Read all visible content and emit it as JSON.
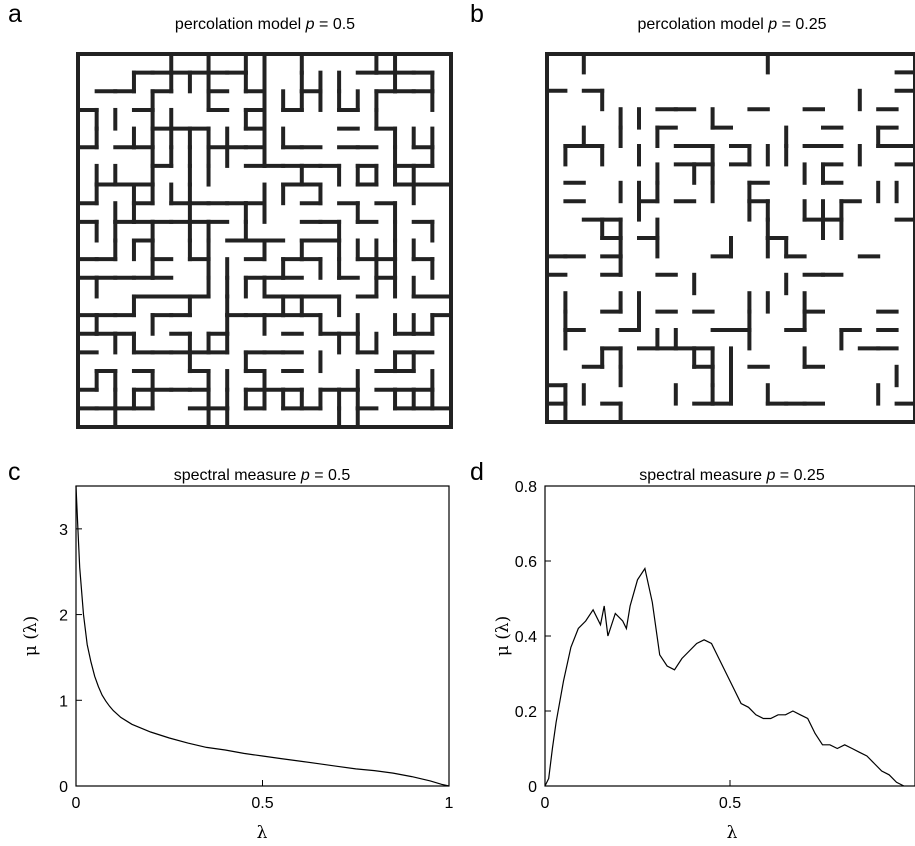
{
  "panels": {
    "a": {
      "letter": "a",
      "title_main": "percolation model ",
      "title_var": "p",
      "title_eq": " = 0.5",
      "lattice": {
        "grid_size": 20,
        "bond_probability": 0.5,
        "seed": 12345
      }
    },
    "b": {
      "letter": "b",
      "title_main": "percolation model ",
      "title_var": "p",
      "title_eq": " = 0.25",
      "lattice": {
        "grid_size": 20,
        "bond_probability": 0.25,
        "seed": 777
      }
    },
    "c": {
      "letter": "c",
      "title_main": "spectral measure ",
      "title_var": "p",
      "title_eq": " = 0.5",
      "xlabel": "λ",
      "ylabel": "μ (λ)",
      "xticks": [
        "0",
        "0.5",
        "1"
      ],
      "yticks": [
        "0",
        "1",
        "2",
        "3"
      ]
    },
    "d": {
      "letter": "d",
      "title_main": "spectral measure ",
      "title_var": "p",
      "title_eq": " = 0.25",
      "xlabel": "λ",
      "ylabel": "μ (λ)",
      "xticks": [
        "0",
        "0.5"
      ],
      "yticks": [
        "0",
        "0.2",
        "0.4",
        "0.6",
        "0.8"
      ]
    }
  },
  "chart_data": [
    {
      "type": "line",
      "panel": "c",
      "title": "spectral measure p = 0.5",
      "xlabel": "λ",
      "ylabel": "μ (λ)",
      "xlim": [
        0,
        1
      ],
      "ylim": [
        0,
        3.5
      ],
      "grid": false,
      "x": [
        0.0,
        0.005,
        0.01,
        0.02,
        0.03,
        0.04,
        0.05,
        0.06,
        0.07,
        0.08,
        0.09,
        0.1,
        0.12,
        0.15,
        0.2,
        0.25,
        0.3,
        0.35,
        0.4,
        0.45,
        0.5,
        0.55,
        0.6,
        0.65,
        0.7,
        0.75,
        0.8,
        0.85,
        0.9,
        0.95,
        0.98,
        1.0
      ],
      "y": [
        3.5,
        3.0,
        2.55,
        2.0,
        1.65,
        1.45,
        1.28,
        1.16,
        1.06,
        0.99,
        0.93,
        0.88,
        0.8,
        0.72,
        0.63,
        0.56,
        0.5,
        0.45,
        0.42,
        0.38,
        0.35,
        0.32,
        0.29,
        0.26,
        0.23,
        0.2,
        0.18,
        0.15,
        0.11,
        0.06,
        0.02,
        0.0
      ]
    },
    {
      "type": "line",
      "panel": "d",
      "title": "spectral measure p = 0.25",
      "xlabel": "λ",
      "ylabel": "μ (λ)",
      "xlim": [
        0,
        1
      ],
      "ylim": [
        0,
        0.8
      ],
      "grid": false,
      "x": [
        0.0,
        0.01,
        0.02,
        0.03,
        0.05,
        0.07,
        0.09,
        0.11,
        0.13,
        0.15,
        0.16,
        0.17,
        0.19,
        0.21,
        0.22,
        0.23,
        0.25,
        0.27,
        0.29,
        0.31,
        0.33,
        0.35,
        0.37,
        0.39,
        0.41,
        0.43,
        0.45,
        0.47,
        0.49,
        0.51,
        0.53,
        0.55,
        0.57,
        0.59,
        0.61,
        0.63,
        0.65,
        0.67,
        0.69,
        0.71,
        0.73,
        0.75,
        0.77,
        0.79,
        0.81,
        0.83,
        0.85,
        0.87,
        0.89,
        0.91,
        0.93,
        0.95,
        0.97
      ],
      "y": [
        0.0,
        0.02,
        0.1,
        0.17,
        0.28,
        0.37,
        0.42,
        0.44,
        0.47,
        0.43,
        0.48,
        0.4,
        0.46,
        0.44,
        0.42,
        0.48,
        0.55,
        0.58,
        0.49,
        0.35,
        0.32,
        0.31,
        0.34,
        0.36,
        0.38,
        0.39,
        0.38,
        0.34,
        0.3,
        0.26,
        0.22,
        0.21,
        0.19,
        0.18,
        0.18,
        0.19,
        0.19,
        0.2,
        0.19,
        0.18,
        0.14,
        0.11,
        0.11,
        0.1,
        0.11,
        0.1,
        0.09,
        0.08,
        0.06,
        0.04,
        0.03,
        0.01,
        0.0
      ]
    }
  ]
}
